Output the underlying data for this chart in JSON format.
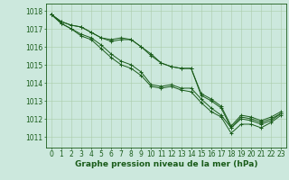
{
  "bg_color": "#cce8dd",
  "grid_color": "#aaccaa",
  "line_color": "#1a5c1a",
  "marker_color": "#1a5c1a",
  "xlabel": "Graphe pression niveau de la mer (hPa)",
  "xlabel_fontsize": 6.5,
  "tick_fontsize": 5.5,
  "ytick_fontsize": 5.5,
  "ylim": [
    1010.4,
    1018.4
  ],
  "xlim": [
    -0.5,
    23.5
  ],
  "yticks": [
    1011,
    1012,
    1013,
    1014,
    1015,
    1016,
    1017,
    1018
  ],
  "xticks": [
    0,
    1,
    2,
    3,
    4,
    5,
    6,
    7,
    8,
    9,
    10,
    11,
    12,
    13,
    14,
    15,
    16,
    17,
    18,
    19,
    20,
    21,
    22,
    23
  ],
  "series": [
    [
      1017.8,
      1017.4,
      1017.2,
      1017.1,
      1016.8,
      1016.5,
      1016.4,
      1016.5,
      1016.4,
      1016.0,
      1015.6,
      1015.1,
      1014.9,
      1014.8,
      1014.8,
      1013.4,
      1013.1,
      1012.7,
      1011.6,
      1012.2,
      1012.1,
      1011.9,
      1012.1,
      1012.4
    ],
    [
      1017.8,
      1017.4,
      1017.2,
      1017.1,
      1016.8,
      1016.5,
      1016.3,
      1016.4,
      1016.4,
      1016.0,
      1015.5,
      1015.1,
      1014.9,
      1014.8,
      1014.8,
      1013.3,
      1013.0,
      1012.6,
      1011.5,
      1012.1,
      1012.0,
      1011.8,
      1012.0,
      1012.3
    ],
    [
      1017.8,
      1017.3,
      1017.0,
      1016.7,
      1016.5,
      1016.1,
      1015.6,
      1015.2,
      1015.0,
      1014.6,
      1013.9,
      1013.8,
      1013.9,
      1013.7,
      1013.7,
      1013.1,
      1012.6,
      1012.2,
      1011.5,
      1012.0,
      1011.9,
      1011.7,
      1011.9,
      1012.3
    ],
    [
      1017.8,
      1017.3,
      1017.0,
      1016.6,
      1016.4,
      1015.9,
      1015.4,
      1015.0,
      1014.8,
      1014.4,
      1013.8,
      1013.7,
      1013.8,
      1013.6,
      1013.5,
      1012.9,
      1012.4,
      1012.1,
      1011.2,
      1011.7,
      1011.7,
      1011.5,
      1011.8,
      1012.2
    ]
  ]
}
